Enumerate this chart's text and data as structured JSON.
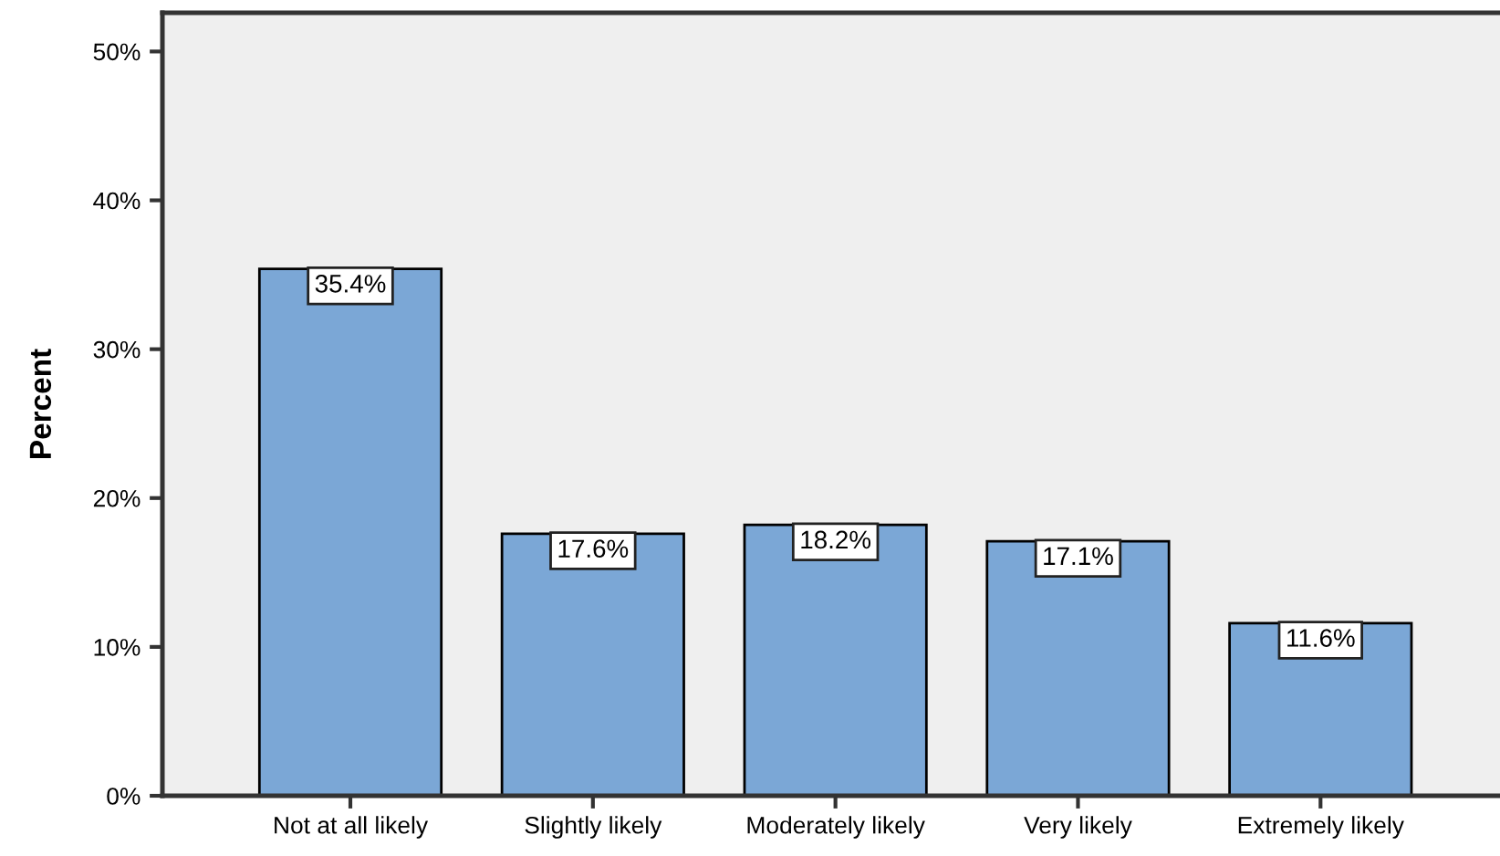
{
  "chart_data": {
    "type": "bar",
    "ylabel": "Percent",
    "categories": [
      "Not at all likely",
      "Slightly likely",
      "Moderately likely",
      "Very likely",
      "Extremely likely"
    ],
    "values": [
      35.4,
      17.6,
      18.2,
      17.1,
      11.6
    ],
    "value_labels": [
      "35.4%",
      "17.6%",
      "18.2%",
      "17.1%",
      "11.6%"
    ],
    "color": "#7ba7d6",
    "ylim": [
      0,
      52.6
    ],
    "yticks": [
      {
        "value": 0,
        "label": "0%"
      },
      {
        "value": 10,
        "label": "10%"
      },
      {
        "value": 20,
        "label": "20%"
      },
      {
        "value": 30,
        "label": "30%"
      },
      {
        "value": 40,
        "label": "40%"
      },
      {
        "value": 50,
        "label": "50%"
      }
    ],
    "grid": false,
    "legend": false
  }
}
